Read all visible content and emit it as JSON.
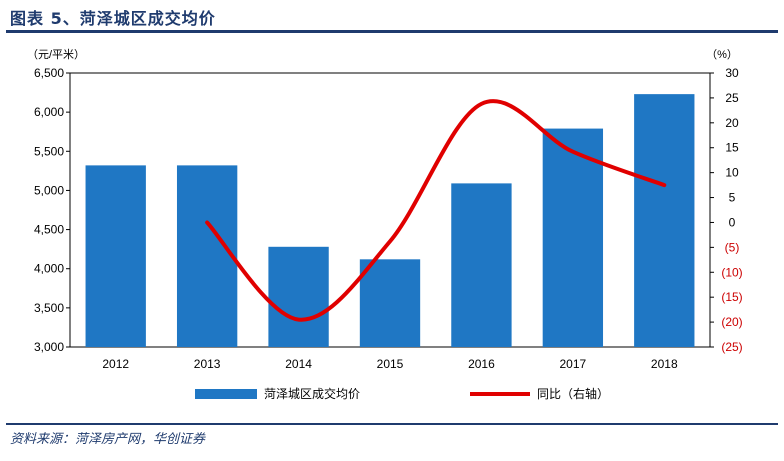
{
  "title": "图表 5、菏泽城区成交均价",
  "source": "资料来源：菏泽房产网，华创证券",
  "chart_data": {
    "type": "bar",
    "categories": [
      "2012",
      "2013",
      "2014",
      "2015",
      "2016",
      "2017",
      "2018"
    ],
    "series": [
      {
        "name": "菏泽城区成交均价",
        "type": "bar",
        "axis": "left",
        "color": "#1f77c4",
        "values": [
          5320,
          5320,
          4280,
          4120,
          5090,
          5790,
          6230
        ]
      },
      {
        "name": "同比（右轴）",
        "type": "line",
        "axis": "right",
        "color": "#e00000",
        "values": [
          null,
          0,
          -19.5,
          -3.8,
          23.8,
          14.2,
          7.5
        ]
      }
    ],
    "left_unit": "（元/平米）",
    "right_unit": "（%）",
    "ylim_left": [
      3000,
      6500
    ],
    "yticks_left": [
      "3,000",
      "3,500",
      "4,000",
      "4,500",
      "5,000",
      "5,500",
      "6,000",
      "6,500"
    ],
    "ylim_right": [
      -25,
      30
    ],
    "yticks_right": [
      "30",
      "25",
      "20",
      "15",
      "10",
      "5",
      "0",
      "(5)",
      "(10)",
      "(15)",
      "(20)",
      "(25)"
    ],
    "negative_tick_color": "#cc0000",
    "grid": false,
    "legend_position": "bottom"
  }
}
